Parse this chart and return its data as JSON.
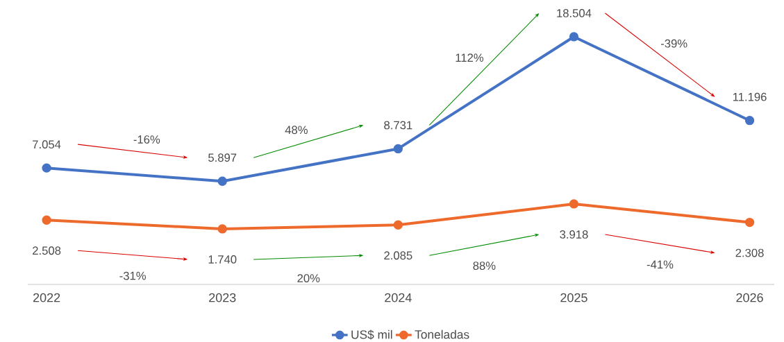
{
  "chart_data": {
    "type": "line",
    "categories": [
      "2022",
      "2023",
      "2024",
      "2025",
      "2026"
    ],
    "series": [
      {
        "name": "US$ mil",
        "color": "#4472c4",
        "values": [
          7054,
          5897,
          8731,
          18504,
          11196
        ],
        "value_labels": [
          "7.054",
          "5.897",
          "8.731",
          "18.504",
          "11.196"
        ]
      },
      {
        "name": "Toneladas",
        "color": "#ed6a2c",
        "values": [
          2508,
          1740,
          2085,
          3918,
          2308
        ],
        "value_labels": [
          "2.508",
          "1.740",
          "2.085",
          "3.918",
          "2.308"
        ]
      }
    ],
    "annotations": [
      "-16%",
      "48%",
      "112%",
      "-39%",
      "-31%",
      "20%",
      "88%",
      "-41%"
    ],
    "legend": "bottom",
    "marker": "circle",
    "line_style": "solid",
    "grid": false,
    "tick_labels": "x"
  }
}
